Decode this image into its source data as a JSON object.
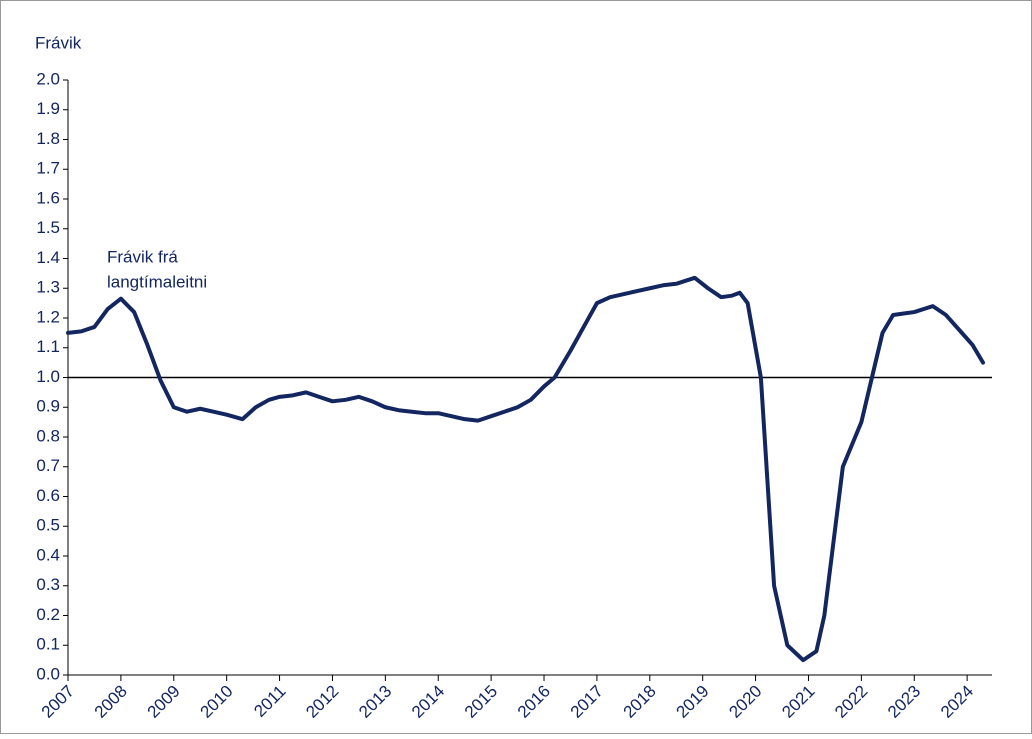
{
  "chart_data": {
    "type": "line",
    "y_label": "Frávik",
    "annotation": [
      "Frávik frá",
      "langtímaleitni"
    ],
    "reference_line": 1.0,
    "xlim": [
      2007,
      2024.47
    ],
    "xticks": [
      2007,
      2008,
      2009,
      2010,
      2011,
      2012,
      2013,
      2014,
      2015,
      2016,
      2017,
      2018,
      2019,
      2020,
      2021,
      2022,
      2023,
      2024
    ],
    "ylim": [
      0,
      2
    ],
    "yticks": [
      {
        "value": 0,
        "label": "0.0"
      },
      0.1,
      0.2,
      0.3,
      0.4,
      0.5,
      0.6,
      0.7,
      0.8,
      0.9,
      {
        "value": 1,
        "label": "1.0"
      },
      1.1,
      1.2,
      1.3,
      1.4,
      1.5,
      1.6,
      1.7,
      1.8,
      1.9,
      {
        "value": 2,
        "label": "2.0"
      }
    ],
    "x": [
      2007.0,
      2007.25,
      2007.5,
      2007.75,
      2008.0,
      2008.25,
      2008.5,
      2008.75,
      2009.0,
      2009.25,
      2009.5,
      2009.75,
      2010.0,
      2010.3,
      2010.55,
      2010.8,
      2011.0,
      2011.25,
      2011.5,
      2011.75,
      2012.0,
      2012.25,
      2012.5,
      2012.75,
      2013.0,
      2013.25,
      2013.5,
      2013.75,
      2014.0,
      2014.25,
      2014.5,
      2014.75,
      2015.0,
      2015.25,
      2015.5,
      2015.75,
      2016.0,
      2016.2,
      2016.5,
      2016.75,
      2017.0,
      2017.25,
      2017.5,
      2017.75,
      2018.0,
      2018.25,
      2018.5,
      2018.85,
      2019.1,
      2019.35,
      2019.55,
      2019.7,
      2019.85,
      2020.1,
      2020.35,
      2020.6,
      2020.9,
      2021.15,
      2021.3,
      2021.65,
      2022.0,
      2022.2,
      2022.4,
      2022.6,
      2022.8,
      2023.0,
      2023.35,
      2023.6,
      2023.9,
      2024.1,
      2024.3
    ],
    "series": [
      {
        "name": "Frávik",
        "color": "#132660",
        "values": [
          1.15,
          1.155,
          1.17,
          1.23,
          1.265,
          1.22,
          1.11,
          0.99,
          0.9,
          0.885,
          0.895,
          0.885,
          0.875,
          0.86,
          0.9,
          0.925,
          0.935,
          0.94,
          0.95,
          0.935,
          0.92,
          0.925,
          0.935,
          0.92,
          0.9,
          0.89,
          0.885,
          0.88,
          0.88,
          0.87,
          0.86,
          0.855,
          0.87,
          0.885,
          0.9,
          0.925,
          0.97,
          1.0,
          1.09,
          1.17,
          1.25,
          1.27,
          1.28,
          1.29,
          1.3,
          1.31,
          1.315,
          1.335,
          1.3,
          1.27,
          1.275,
          1.285,
          1.25,
          1.0,
          0.3,
          0.1,
          0.05,
          0.08,
          0.2,
          0.7,
          0.85,
          1.0,
          1.15,
          1.21,
          1.215,
          1.22,
          1.24,
          1.21,
          1.15,
          1.11,
          1.05
        ]
      }
    ]
  }
}
